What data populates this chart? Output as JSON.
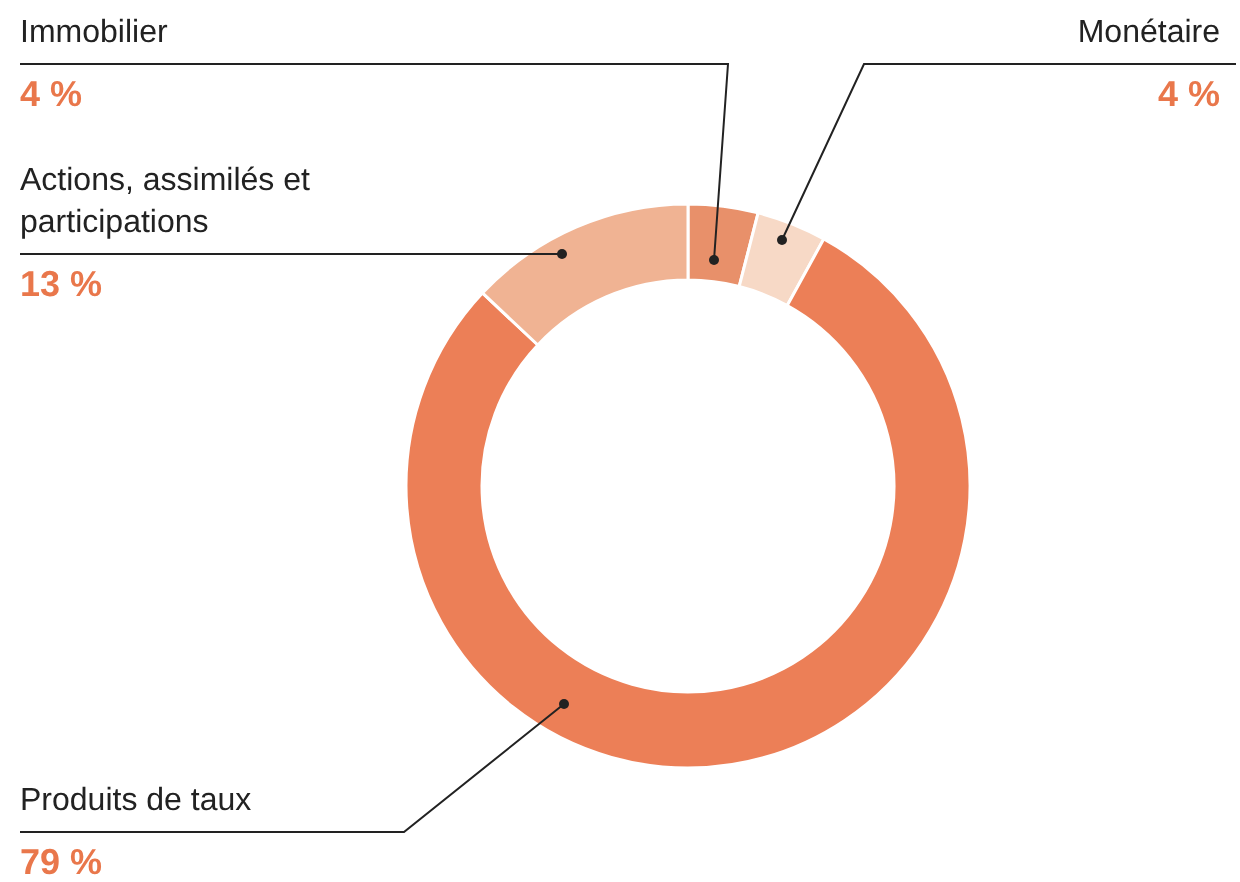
{
  "chart_data": {
    "type": "donut",
    "categories": [
      "Immobilier",
      "Monétaire",
      "Produits de taux",
      "Actions, assimilés et participations"
    ],
    "values": [
      4,
      4,
      79,
      13
    ],
    "colors": [
      "#e8906a",
      "#f7d9c6",
      "#ec7f57",
      "#f0b393"
    ],
    "value_labels": [
      "4 %",
      "4 %",
      "79 %",
      "13 %"
    ]
  }
}
